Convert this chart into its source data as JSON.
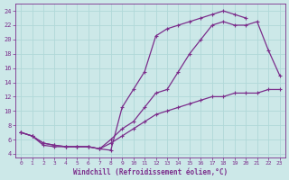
{
  "xlabel": "Windchill (Refroidissement éolien,°C)",
  "xlim": [
    -0.5,
    23.5
  ],
  "ylim": [
    3.5,
    25
  ],
  "yticks": [
    4,
    6,
    8,
    10,
    12,
    14,
    16,
    18,
    20,
    22,
    24
  ],
  "xticks": [
    0,
    1,
    2,
    3,
    4,
    5,
    6,
    7,
    8,
    9,
    10,
    11,
    12,
    13,
    14,
    15,
    16,
    17,
    18,
    19,
    20,
    21,
    22,
    23
  ],
  "line_color": "#7b2d8b",
  "bg_color": "#cce8e8",
  "grid_color": "#b0d8d8",
  "curve1_x": [
    0,
    1,
    2,
    3,
    4,
    5,
    6,
    7,
    8,
    9,
    10,
    11,
    12,
    13,
    14,
    15,
    16,
    17,
    18,
    19,
    20,
    21,
    22,
    23
  ],
  "curve1_y": [
    7.0,
    6.5,
    5.2,
    5.0,
    5.0,
    5.0,
    5.0,
    4.7,
    4.5,
    10.5,
    13.0,
    15.5,
    20.5,
    21.5,
    22.0,
    22.5,
    23.0,
    23.5,
    24.0,
    23.5,
    23.0,
    null,
    null,
    null
  ],
  "curve2_x": [
    0,
    1,
    2,
    3,
    4,
    5,
    6,
    7,
    8,
    9,
    10,
    11,
    12,
    13,
    14,
    15,
    16,
    17,
    18,
    19,
    20,
    21,
    22,
    23
  ],
  "curve2_y": [
    7.0,
    6.5,
    5.5,
    5.2,
    5.0,
    5.0,
    5.0,
    4.7,
    5.5,
    6.5,
    7.5,
    8.5,
    9.5,
    10.0,
    10.5,
    11.0,
    11.5,
    12.0,
    12.0,
    12.5,
    12.5,
    12.5,
    13.0,
    13.0
  ],
  "curve3_x": [
    0,
    1,
    2,
    3,
    4,
    5,
    6,
    7,
    8,
    9,
    10,
    11,
    12,
    13,
    14,
    15,
    16,
    17,
    18,
    19,
    20,
    21,
    22,
    23
  ],
  "curve3_y": [
    7.0,
    6.5,
    5.5,
    5.2,
    5.0,
    5.0,
    5.0,
    4.7,
    6.0,
    7.5,
    8.5,
    10.5,
    12.5,
    13.0,
    15.5,
    18.0,
    20.0,
    22.0,
    22.5,
    22.0,
    22.0,
    22.5,
    18.5,
    15.0
  ]
}
